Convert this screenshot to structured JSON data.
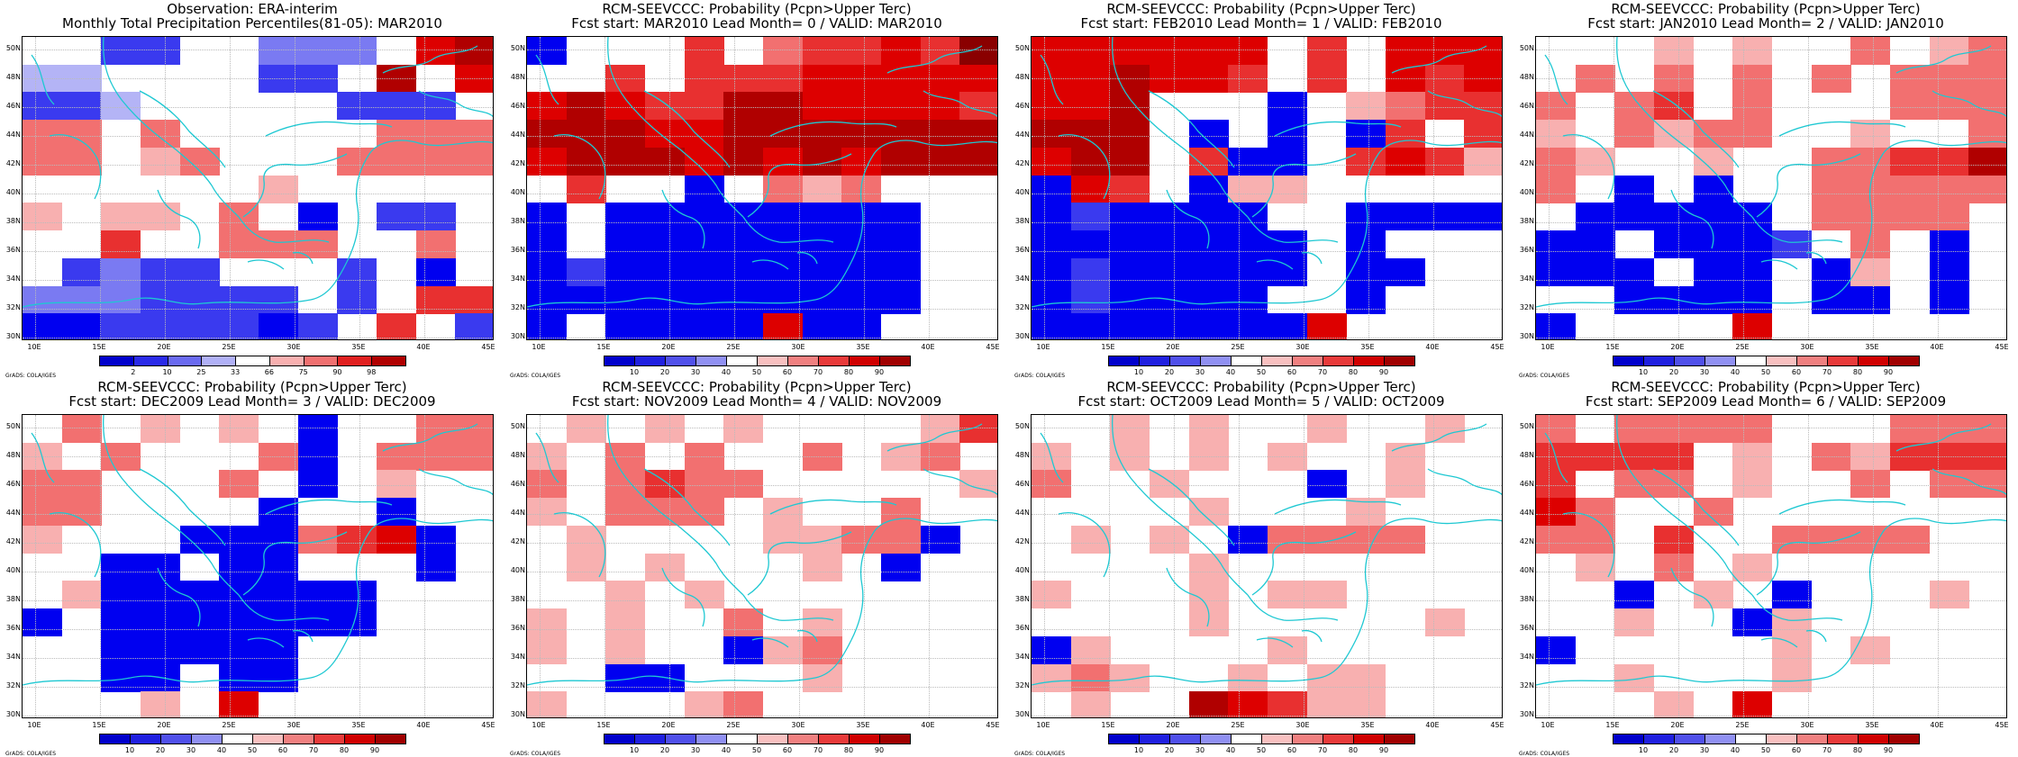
{
  "colors": {
    "blue": [
      "#0000f0",
      "#3a3aef",
      "#7a7af2",
      "#b4b4f6"
    ],
    "red": [
      "#f8b0b0",
      "#f27070",
      "#e83030",
      "#dd0000",
      "#b00000",
      "#8a0000"
    ],
    "coast": "#1ec8d2"
  },
  "axes": {
    "x_labels": [
      "10E",
      "15E",
      "20E",
      "25E",
      "30E",
      "35E",
      "40E",
      "45E"
    ],
    "y_labels": [
      "50N",
      "48N",
      "46N",
      "44N",
      "42N",
      "40N",
      "38N",
      "36N",
      "34N",
      "32N",
      "30N"
    ]
  },
  "credit": "GrADS: COLA/IGES",
  "panels": [
    {
      "title1": "Observation: ERA-interim",
      "title2": "Monthly Total Precipitation Percentiles(81-05): MAR2010",
      "cbar_labels": [
        "2",
        "10",
        "25",
        "33",
        "66",
        "75",
        "90",
        "98"
      ],
      "grid": [
        "..bb..ccc.45",
        "dd....bb.5.4",
        "bbd.....bbb.",
        "22.2.....222",
        "22.12...2222",
        "......1.....",
        "1.11.2.a.bb.",
        "..3..222..2.",
        ".bcbb...b.a.",
        "cccbbbb.b.33",
        "aabbbbab.3.b"
      ]
    },
    {
      "title1": "RCM-SEEVCCC: Probability (Pcpn>Upper Terc)",
      "title2": "Fcst start: MAR2010   Lead Month= 0 / VALID: MAR2010",
      "cbar_labels": [
        "10",
        "20",
        "30",
        "40",
        "50",
        "60",
        "70",
        "80",
        "90"
      ],
      "grid": [
        "a...3.233436",
        "..3.33344444",
        "454335544443",
        "555445555555",
        "455545454555",
        ".3..a.212...",
        "a.aaaaaaaa..",
        "a.aaaaaaaa..",
        "abaaaaaaaa..",
        "aaaaaaaaaa..",
        "a.aaaa4aa..."
      ]
    },
    {
      "title1": "RCM-SEEVCCC: Probability (Pcpn>Upper Terc)",
      "title2": "Fcst start: FEB2010   Lead Month= 1 / VALID: FEB2010",
      "cbar_labels": [
        "10",
        "20",
        "30",
        "40",
        "50",
        "60",
        "70",
        "80",
        "90"
      ],
      "grid": [
        "444444.3.444",
        "445443.3.434",
        "445...a.1233",
        "555.a.a.a3.3",
        "455.3aa.3431",
        "a43.a11.....",
        "abaaaa..aaaa",
        "aaaaaaa.a...",
        "abaaaaa.aa..",
        "abaaaa..a...",
        "aaaaaaa4...."
      ]
    },
    {
      "title1": "RCM-SEEVCCC: Probability (Pcpn>Upper Terc)",
      "title2": "Fcst start: JAN2010   Lead Month= 2 / VALID: JAN2010",
      "cbar_labels": [
        "10",
        "20",
        "30",
        "40",
        "50",
        "60",
        "70",
        "80",
        "90"
      ],
      "grid": [
        "...1.1..2.12",
        ".2.2.2.2.222",
        "2.23.2...222",
        "1.2122..1..2",
        "21..1..22335",
        "2.a.a..22222",
        ".aaaaa.2222.",
        "aa.aaab.2.a.",
        "aaa.aa.a1.a.",
        "..aaaa.aa.a.",
        "a....4......"
      ]
    },
    {
      "title1": "RCM-SEEVCCC: Probability (Pcpn>Upper Terc)",
      "title2": "Fcst start: DEC2009   Lead Month= 3 / VALID: DEC2009",
      "cbar_labels": [
        "10",
        "20",
        "30",
        "40",
        "50",
        "60",
        "70",
        "80",
        "90"
      ],
      "grid": [
        ".2.1.1.a..22",
        "1.2...2a.222",
        "22...2.a.1..",
        "22....a..a..",
        "1...aaa234a.",
        "..aa.aa...a.",
        ".1aaaaaaa...",
        "a.aaaaaaa...",
        "..aaaaa.....",
        "..aa.aa.....",
        "...1.4......"
      ]
    },
    {
      "title1": "RCM-SEEVCCC: Probability (Pcpn>Upper Terc)",
      "title2": "Fcst start: NOV2009   Lead Month= 4 / VALID: NOV2009",
      "cbar_labels": [
        "10",
        "20",
        "30",
        "40",
        "50",
        "60",
        "70",
        "80",
        "90"
      ],
      "grid": [
        ".1.1.1....13",
        "1.2.2..2.12.",
        "2.2322.....1",
        "1.222.1..2..",
        ".1....1122a.",
        ".1.1...1.a..",
        "..1.1.......",
        "1.1..2.1....",
        "1.1..a12....",
        "..aa...1....",
        "1...12......"
      ]
    },
    {
      "title1": "RCM-SEEVCCC: Probability (Pcpn>Upper Terc)",
      "title2": "Fcst start: OCT2009   Lead Month= 5 / VALID: OCT2009",
      "cbar_labels": [
        "10",
        "20",
        "30",
        "40",
        "50",
        "60",
        "70",
        "80",
        "90"
      ],
      "grid": [
        "..1.1..1..1.",
        "1.1.1.1..1..",
        "2..1...a.1..",
        "....1...1...",
        ".1.1.a2222..",
        "....1.......",
        "1...1.11....",
        "....1.....1.",
        "a1....1.....",
        "121..1.11...",
        ".1..54311..."
      ]
    },
    {
      "title1": "RCM-SEEVCCC: Probability (Pcpn>Upper Terc)",
      "title2": "Fcst start: SEP2009   Lead Month= 6 / VALID: SEP2009",
      "cbar_labels": [
        "10",
        "20",
        "30",
        "40",
        "50",
        "60",
        "70",
        "80",
        "90"
      ],
      "grid": [
        "2.2222...222",
        "3333.1.21333",
        "3.22.1..2.22",
        "42..2.......",
        "22.3..2222..",
        ".1.2.1......",
        "..a.1.a...1.",
        "..1..a1.....",
        "a.....1.1...",
        "..1...1.....",
        "...1.4......"
      ]
    }
  ]
}
